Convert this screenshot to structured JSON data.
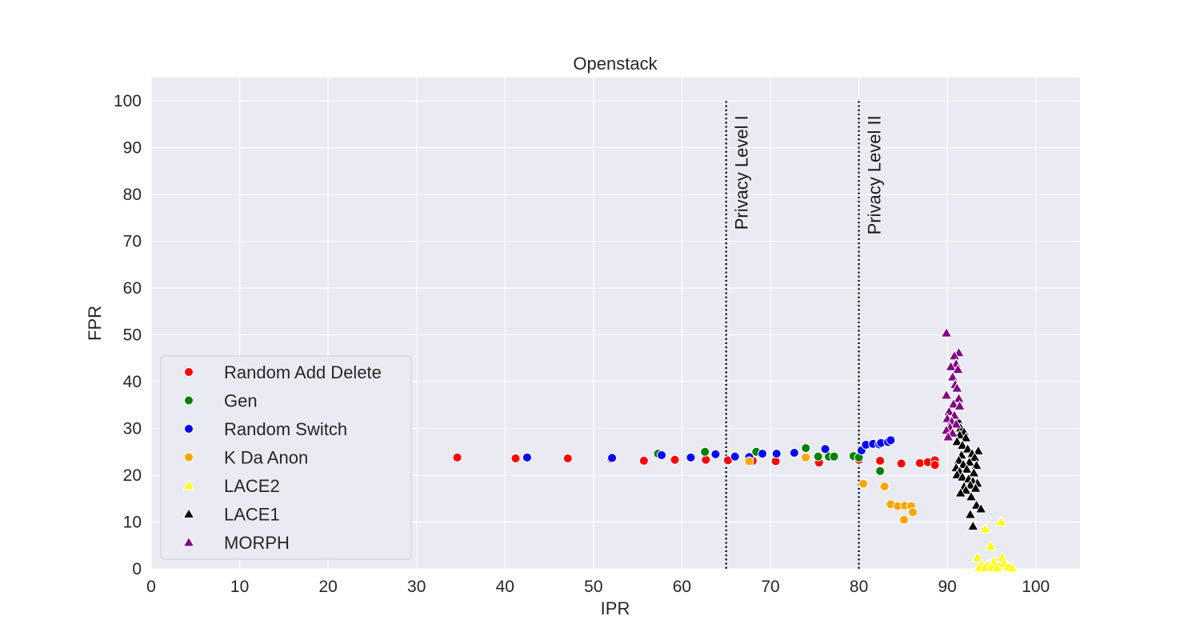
{
  "chart_data": {
    "type": "scatter",
    "title": "Openstack",
    "xlabel": "IPR",
    "ylabel": "FPR",
    "xlim": [
      0,
      105
    ],
    "ylim": [
      0,
      105
    ],
    "xticks": [
      0,
      10,
      20,
      30,
      40,
      50,
      60,
      70,
      80,
      90,
      100
    ],
    "yticks": [
      0,
      10,
      20,
      30,
      40,
      50,
      60,
      70,
      80,
      90,
      100
    ],
    "grid": true,
    "legend_position": "lower-left",
    "vlines": [
      {
        "x": 65,
        "label": "Privacy Level I"
      },
      {
        "x": 80,
        "label": "Privacy Level II"
      }
    ],
    "series": [
      {
        "name": "Random Add Delete",
        "color": "#ff0000",
        "marker": "circle",
        "points": [
          [
            34.6,
            23.8
          ],
          [
            41.2,
            23.6
          ],
          [
            47.1,
            23.6
          ],
          [
            52.0,
            23.5
          ],
          [
            55.7,
            23.1
          ],
          [
            59.2,
            23.3
          ],
          [
            62.7,
            23.3
          ],
          [
            65.2,
            23.2
          ],
          [
            68.0,
            23.1
          ],
          [
            70.6,
            23.0
          ],
          [
            75.5,
            22.7
          ],
          [
            80.0,
            23.3
          ],
          [
            82.4,
            23.1
          ],
          [
            84.8,
            22.5
          ],
          [
            86.9,
            22.6
          ],
          [
            87.8,
            22.8
          ],
          [
            88.6,
            23.2
          ],
          [
            88.6,
            22.2
          ]
        ]
      },
      {
        "name": "Gen",
        "color": "#008000",
        "marker": "circle",
        "points": [
          [
            57.3,
            24.6
          ],
          [
            62.6,
            25.0
          ],
          [
            68.4,
            25.0
          ],
          [
            74.0,
            25.8
          ],
          [
            75.4,
            24.0
          ],
          [
            76.6,
            24.0
          ],
          [
            77.2,
            24.0
          ],
          [
            79.4,
            24.1
          ],
          [
            80.0,
            23.8
          ],
          [
            82.4,
            20.9
          ]
        ]
      },
      {
        "name": "Random Switch",
        "color": "#0000ff",
        "marker": "circle",
        "points": [
          [
            42.5,
            23.8
          ],
          [
            52.1,
            23.7
          ],
          [
            57.7,
            24.3
          ],
          [
            61.0,
            23.8
          ],
          [
            63.8,
            24.5
          ],
          [
            66.0,
            24.0
          ],
          [
            67.6,
            23.9
          ],
          [
            69.1,
            24.6
          ],
          [
            70.7,
            24.6
          ],
          [
            72.7,
            24.8
          ],
          [
            76.2,
            25.6
          ],
          [
            80.3,
            25.3
          ],
          [
            80.8,
            26.5
          ],
          [
            81.6,
            26.7
          ],
          [
            82.3,
            26.6
          ],
          [
            82.5,
            26.9
          ],
          [
            83.3,
            27.1
          ],
          [
            83.6,
            27.5
          ]
        ]
      },
      {
        "name": "K Da Anon",
        "color": "#ffa500",
        "marker": "circle",
        "points": [
          [
            67.6,
            23.0
          ],
          [
            74.0,
            23.8
          ],
          [
            80.5,
            18.2
          ],
          [
            82.9,
            17.6
          ],
          [
            83.6,
            13.8
          ],
          [
            84.4,
            13.4
          ],
          [
            85.2,
            13.5
          ],
          [
            85.9,
            13.4
          ],
          [
            86.1,
            12.1
          ],
          [
            85.1,
            10.5
          ]
        ]
      },
      {
        "name": "LACE2",
        "color": "#ffff00",
        "marker": "triangle",
        "points": [
          [
            94.3,
            8.5
          ],
          [
            96.1,
            10.0
          ],
          [
            94.9,
            4.8
          ],
          [
            93.4,
            2.4
          ],
          [
            95.4,
            1.6
          ],
          [
            96.2,
            2.4
          ],
          [
            93.8,
            1.0
          ],
          [
            94.6,
            0.8
          ],
          [
            95.2,
            1.4
          ],
          [
            95.8,
            0.6
          ],
          [
            96.4,
            1.1
          ],
          [
            96.9,
            0.4
          ],
          [
            97.3,
            0.2
          ],
          [
            93.6,
            0.3
          ],
          [
            94.2,
            0.2
          ],
          [
            95.0,
            0.3
          ],
          [
            95.6,
            0.2
          ]
        ]
      },
      {
        "name": "LACE1",
        "color": "#000000",
        "marker": "triangle",
        "points": [
          [
            91.2,
            31.8
          ],
          [
            91.5,
            30.1
          ],
          [
            91.9,
            29.2
          ],
          [
            91.4,
            28.6
          ],
          [
            92.1,
            28.0
          ],
          [
            91.1,
            27.2
          ],
          [
            91.7,
            26.4
          ],
          [
            92.3,
            25.6
          ],
          [
            93.5,
            25.2
          ],
          [
            92.8,
            24.6
          ],
          [
            91.6,
            24.3
          ],
          [
            93.1,
            23.8
          ],
          [
            91.3,
            23.2
          ],
          [
            92.5,
            22.8
          ],
          [
            91.8,
            22.3
          ],
          [
            93.3,
            22.1
          ],
          [
            91.0,
            21.6
          ],
          [
            92.2,
            21.3
          ],
          [
            91.4,
            20.8
          ],
          [
            93.0,
            20.5
          ],
          [
            91.1,
            20.1
          ],
          [
            91.7,
            19.6
          ],
          [
            92.4,
            19.2
          ],
          [
            92.9,
            18.7
          ],
          [
            93.4,
            18.3
          ],
          [
            92.6,
            17.9
          ],
          [
            91.9,
            17.6
          ],
          [
            93.2,
            17.2
          ],
          [
            92.1,
            16.8
          ],
          [
            91.5,
            16.2
          ],
          [
            92.7,
            15.4
          ],
          [
            93.3,
            13.6
          ],
          [
            93.8,
            12.8
          ],
          [
            92.6,
            11.6
          ],
          [
            92.9,
            9.1
          ]
        ]
      },
      {
        "name": "MORPH",
        "color": "#800080",
        "marker": "triangle",
        "points": [
          [
            89.9,
            50.4
          ],
          [
            91.3,
            46.2
          ],
          [
            90.8,
            45.5
          ],
          [
            91.0,
            43.8
          ],
          [
            90.4,
            43.2
          ],
          [
            91.2,
            42.6
          ],
          [
            90.6,
            41.0
          ],
          [
            90.9,
            39.4
          ],
          [
            91.1,
            38.6
          ],
          [
            89.9,
            37.1
          ],
          [
            91.3,
            36.4
          ],
          [
            90.7,
            35.2
          ],
          [
            91.4,
            34.8
          ],
          [
            90.2,
            33.6
          ],
          [
            90.8,
            32.8
          ],
          [
            90.0,
            32.1
          ],
          [
            90.5,
            31.5
          ],
          [
            91.0,
            30.9
          ],
          [
            90.3,
            30.2
          ],
          [
            89.9,
            29.6
          ],
          [
            90.6,
            29.0
          ],
          [
            90.1,
            28.2
          ]
        ]
      }
    ]
  }
}
